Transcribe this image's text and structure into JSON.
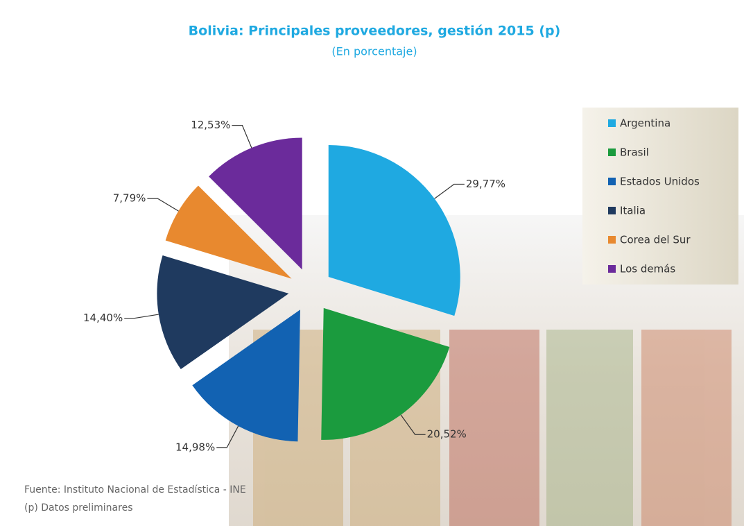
{
  "chart_data": {
    "type": "pie",
    "title": "Bolivia: Principales proveedores, gestión 2015 (p)",
    "subtitle": "(En porcentaje)",
    "categories": [
      "Argentina",
      "Brasil",
      "Estados Unidos",
      "Italia",
      "Corea del Sur",
      "Los demás"
    ],
    "values": [
      29.77,
      20.52,
      14.98,
      14.4,
      7.79,
      12.53
    ],
    "value_labels": [
      "29,77%",
      "20,52%",
      "14,98%",
      "14,40%",
      "7,79%",
      "12,53%"
    ],
    "colors": [
      "#1fa9e1",
      "#1b9b3e",
      "#1262b2",
      "#1f3a5f",
      "#e8892f",
      "#6b2b9b"
    ],
    "source": "Fuente: Instituto Nacional de Estadística - INE",
    "note": "(p) Datos preliminares"
  }
}
